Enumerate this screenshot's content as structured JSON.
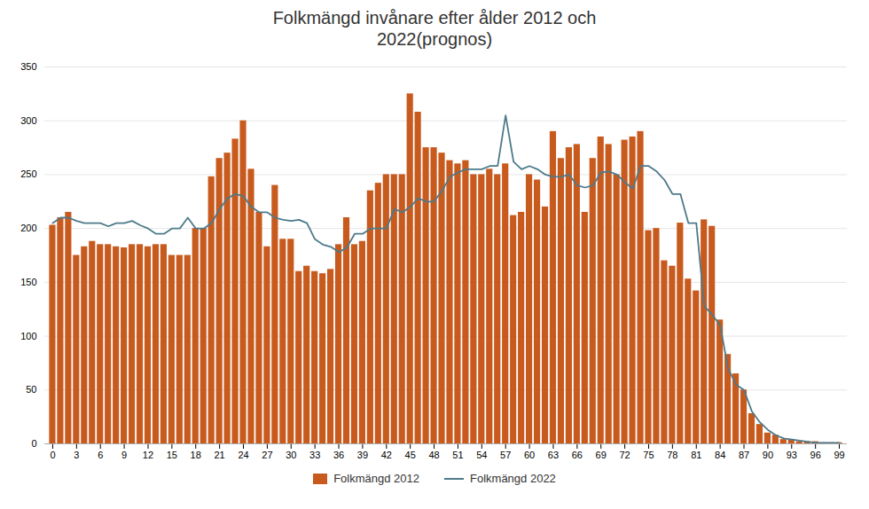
{
  "chart_data": {
    "type": "bar",
    "title": "Folkmängd invånare efter ålder 2012 och\n2022(prognos)",
    "x": [
      0,
      1,
      2,
      3,
      4,
      5,
      6,
      7,
      8,
      9,
      10,
      11,
      12,
      13,
      14,
      15,
      16,
      17,
      18,
      19,
      20,
      21,
      22,
      23,
      24,
      25,
      26,
      27,
      28,
      29,
      30,
      31,
      32,
      33,
      34,
      35,
      36,
      37,
      38,
      39,
      40,
      41,
      42,
      43,
      44,
      45,
      46,
      47,
      48,
      49,
      50,
      51,
      52,
      53,
      54,
      55,
      56,
      57,
      58,
      59,
      60,
      61,
      62,
      63,
      64,
      65,
      66,
      67,
      68,
      69,
      70,
      71,
      72,
      73,
      74,
      75,
      76,
      77,
      78,
      79,
      80,
      81,
      82,
      83,
      84,
      85,
      86,
      87,
      88,
      89,
      90,
      91,
      92,
      93,
      94,
      95,
      96,
      97,
      98,
      99
    ],
    "series": [
      {
        "name": "Folkmängd 2012",
        "type": "bar",
        "color": "#C85A1E",
        "values": [
          203,
          210,
          215,
          175,
          183,
          188,
          185,
          185,
          183,
          182,
          185,
          185,
          183,
          185,
          185,
          175,
          175,
          175,
          200,
          200,
          248,
          265,
          270,
          283,
          300,
          255,
          215,
          183,
          240,
          190,
          190,
          160,
          165,
          160,
          158,
          162,
          185,
          210,
          185,
          188,
          235,
          242,
          250,
          250,
          250,
          325,
          308,
          275,
          275,
          270,
          263,
          260,
          263,
          250,
          250,
          255,
          250,
          260,
          212,
          215,
          250,
          245,
          220,
          290,
          265,
          275,
          278,
          215,
          265,
          285,
          278,
          250,
          282,
          285,
          290,
          198,
          200,
          170,
          165,
          205,
          153,
          142,
          208,
          202,
          115,
          83,
          65,
          50,
          28,
          18,
          10,
          8,
          4,
          4,
          2,
          2,
          2,
          1,
          1,
          1
        ]
      },
      {
        "name": "Folkmängd 2022",
        "type": "line",
        "color": "#4D7A8A",
        "values": [
          205,
          210,
          210,
          207,
          205,
          205,
          205,
          202,
          205,
          205,
          207,
          203,
          200,
          195,
          195,
          200,
          200,
          210,
          200,
          200,
          205,
          218,
          228,
          232,
          230,
          220,
          215,
          215,
          210,
          208,
          207,
          208,
          205,
          190,
          185,
          183,
          178,
          182,
          195,
          195,
          200,
          200,
          200,
          218,
          215,
          220,
          228,
          225,
          225,
          235,
          248,
          252,
          255,
          255,
          255,
          258,
          258,
          305,
          262,
          255,
          258,
          255,
          250,
          248,
          248,
          250,
          240,
          238,
          240,
          252,
          253,
          250,
          243,
          237,
          258,
          258,
          253,
          245,
          232,
          232,
          205,
          205,
          128,
          120,
          110,
          70,
          55,
          50,
          30,
          20,
          13,
          8,
          5,
          4,
          3,
          2,
          1,
          1,
          1,
          1
        ]
      }
    ],
    "xlim": [
      -1,
      100
    ],
    "xticks": [
      0,
      3,
      6,
      9,
      12,
      15,
      18,
      21,
      24,
      27,
      30,
      33,
      36,
      39,
      42,
      45,
      48,
      51,
      54,
      57,
      60,
      63,
      66,
      69,
      72,
      75,
      78,
      81,
      84,
      87,
      90,
      93,
      96,
      99
    ],
    "ylim": [
      0,
      350
    ],
    "yticks": [
      0,
      50,
      100,
      150,
      200,
      250,
      300,
      350
    ],
    "grid": "y",
    "legend": "bottom"
  }
}
